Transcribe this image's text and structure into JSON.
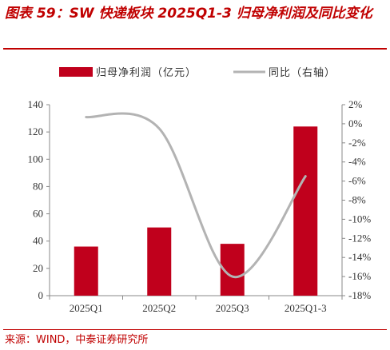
{
  "title": "图表 59：SW 快递板块 2025Q1-3 归母净利润及同比变化",
  "footer": "来源：WIND，中泰证券研究所",
  "colors": {
    "bar": "#c0001c",
    "line": "#b3b3b3",
    "axis": "#888888",
    "title": "#c00000"
  },
  "chart_data": {
    "type": "bar",
    "categories": [
      "2025Q1",
      "2025Q2",
      "2025Q3",
      "2025Q1-3"
    ],
    "series": [
      {
        "name": "归母净利润（亿元）",
        "type": "bar",
        "axis": "left",
        "values": [
          36,
          50,
          38,
          124
        ]
      },
      {
        "name": "同比（右轴）",
        "type": "line",
        "axis": "right",
        "values": [
          0.7,
          -0.5,
          -16.0,
          -5.5
        ]
      }
    ],
    "y_left": {
      "min": 0,
      "max": 140,
      "step": 20,
      "tick_labels": [
        "0",
        "20",
        "40",
        "60",
        "80",
        "100",
        "120",
        "140"
      ]
    },
    "y_right": {
      "min": -18,
      "max": 2,
      "step": 2,
      "tick_labels": [
        "-18%",
        "-16%",
        "-14%",
        "-12%",
        "-10%",
        "-8%",
        "-6%",
        "-4%",
        "-2%",
        "0%",
        "2%"
      ]
    },
    "legend_position": "top",
    "grid": false
  }
}
